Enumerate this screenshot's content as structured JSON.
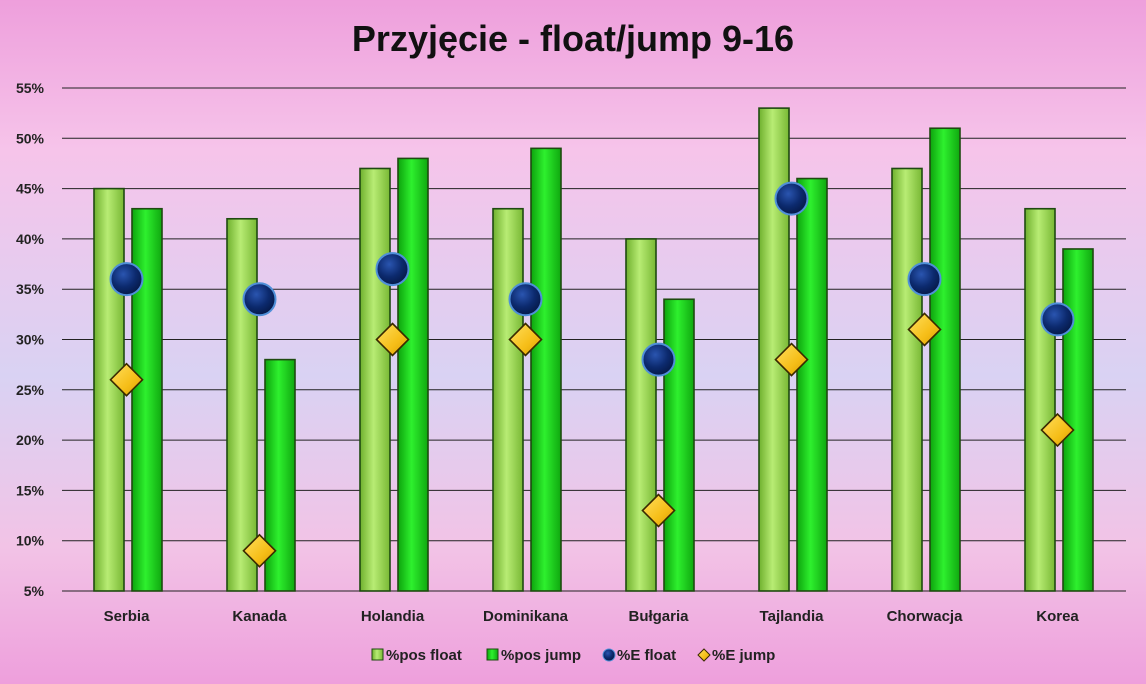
{
  "chart_data": {
    "type": "bar",
    "title": "Przyjęcie - float/jump 9-16",
    "categories": [
      "Serbia",
      "Kanada",
      "Holandia",
      "Dominikana",
      "Bułgaria",
      "Tajlandia",
      "Chorwacja",
      "Korea"
    ],
    "y_ticks": [
      "5%",
      "10%",
      "15%",
      "20%",
      "25%",
      "30%",
      "35%",
      "40%",
      "45%",
      "50%",
      "55%"
    ],
    "ylim": [
      5,
      55
    ],
    "grid": true,
    "legend_position": "bottom",
    "series": [
      {
        "name": "%pos float",
        "kind": "bar",
        "color": "#96d64a",
        "values": [
          45,
          42,
          47,
          43,
          40,
          53,
          47,
          43
        ]
      },
      {
        "name": "%pos jump",
        "kind": "bar",
        "color": "#19cc19",
        "values": [
          43,
          28,
          48,
          49,
          34,
          46,
          51,
          39
        ]
      },
      {
        "name": "%E float",
        "kind": "marker-circle",
        "color": "#0c2f78",
        "values": [
          36,
          34,
          37,
          34,
          28,
          44,
          36,
          32
        ]
      },
      {
        "name": "%E jump",
        "kind": "marker-diamond",
        "color": "#f7c21a",
        "values": [
          26,
          9,
          30,
          30,
          13,
          28,
          31,
          21
        ]
      }
    ]
  }
}
